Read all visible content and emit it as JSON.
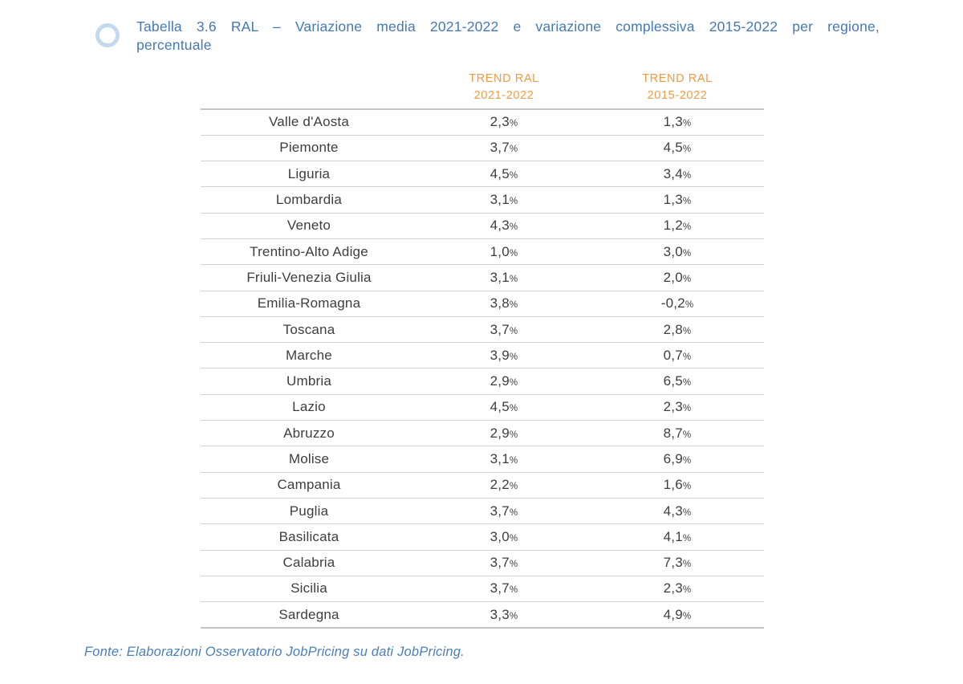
{
  "title": {
    "line1": "Tabella 3.6 RAL – Variazione media 2021-2022 e variazione complessiva 2015-2022 per regione,",
    "line2": "percentuale"
  },
  "colors": {
    "title_blue": "#4579b2",
    "header_orange": "#f09b44",
    "body_text": "#3e3e3e",
    "circle_ring": "#c5d9ec",
    "rule_heavy": "#c4c4c4",
    "rule_light": "#d3d3d3",
    "footer_blue": "#4a80b8"
  },
  "table": {
    "col_headers": [
      {
        "line1": "TREND RAL",
        "line2": "2021-2022"
      },
      {
        "line1": "TREND RAL",
        "line2": "2015-2022"
      }
    ],
    "rows": [
      {
        "region": "Valle d'Aosta",
        "trend_2021_2022": "2,3%",
        "trend_2015_2022": "1,3%"
      },
      {
        "region": "Piemonte",
        "trend_2021_2022": "3,7%",
        "trend_2015_2022": "4,5%"
      },
      {
        "region": "Liguria",
        "trend_2021_2022": "4,5%",
        "trend_2015_2022": "3,4%"
      },
      {
        "region": "Lombardia",
        "trend_2021_2022": "3,1%",
        "trend_2015_2022": "1,3%"
      },
      {
        "region": "Veneto",
        "trend_2021_2022": "4,3%",
        "trend_2015_2022": "1,2%"
      },
      {
        "region": "Trentino-Alto Adige",
        "trend_2021_2022": "1,0%",
        "trend_2015_2022": "3,0%"
      },
      {
        "region": "Friuli-Venezia Giulia",
        "trend_2021_2022": "3,1%",
        "trend_2015_2022": "2,0%"
      },
      {
        "region": "Emilia-Romagna",
        "trend_2021_2022": "3,8%",
        "trend_2015_2022": "-0,2%"
      },
      {
        "region": "Toscana",
        "trend_2021_2022": "3,7%",
        "trend_2015_2022": "2,8%"
      },
      {
        "region": "Marche",
        "trend_2021_2022": "3,9%",
        "trend_2015_2022": "0,7%"
      },
      {
        "region": "Umbria",
        "trend_2021_2022": "2,9%",
        "trend_2015_2022": "6,5%"
      },
      {
        "region": "Lazio",
        "trend_2021_2022": "4,5%",
        "trend_2015_2022": "2,3%"
      },
      {
        "region": "Abruzzo",
        "trend_2021_2022": "2,9%",
        "trend_2015_2022": "8,7%"
      },
      {
        "region": "Molise",
        "trend_2021_2022": "3,1%",
        "trend_2015_2022": "6,9%"
      },
      {
        "region": "Campania",
        "trend_2021_2022": "2,2%",
        "trend_2015_2022": "1,6%"
      },
      {
        "region": "Puglia",
        "trend_2021_2022": "3,7%",
        "trend_2015_2022": "4,3%"
      },
      {
        "region": "Basilicata",
        "trend_2021_2022": "3,0%",
        "trend_2015_2022": "4,1%"
      },
      {
        "region": "Calabria",
        "trend_2021_2022": "3,7%",
        "trend_2015_2022": "7,3%"
      },
      {
        "region": "Sicilia",
        "trend_2021_2022": "3,7%",
        "trend_2015_2022": "2,3%"
      },
      {
        "region": "Sardegna",
        "trend_2021_2022": "3,3%",
        "trend_2015_2022": "4,9%"
      }
    ]
  },
  "footer": {
    "source": "Fonte: Elaborazioni Osservatorio JobPricing su dati JobPricing."
  }
}
